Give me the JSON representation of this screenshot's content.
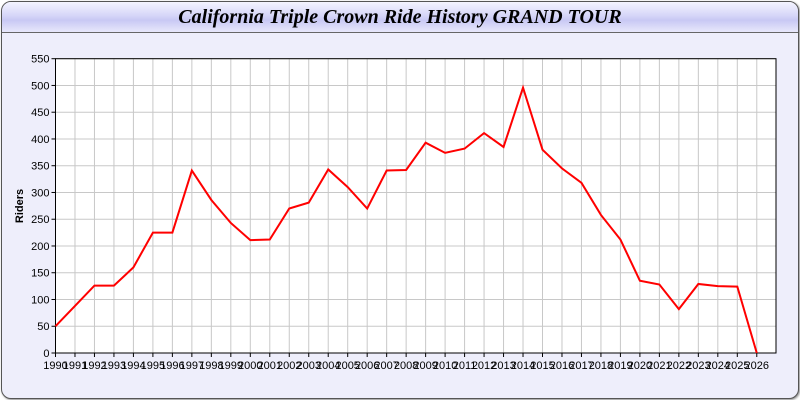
{
  "title": "California Triple Crown Ride History GRAND TOUR",
  "chart_data": {
    "type": "line",
    "title": "California Triple Crown Ride History GRAND TOUR",
    "xlabel": "",
    "ylabel": "Riders",
    "xlim": [
      1990,
      2027
    ],
    "ylim": [
      0,
      550
    ],
    "yticks": [
      0,
      50,
      100,
      150,
      200,
      250,
      300,
      350,
      400,
      450,
      500,
      550
    ],
    "grid": true,
    "line_color": "#ff0000",
    "x": [
      1990,
      1991,
      1992,
      1993,
      1994,
      1995,
      1996,
      1997,
      1998,
      1999,
      2000,
      2001,
      2002,
      2003,
      2004,
      2005,
      2006,
      2007,
      2008,
      2009,
      2010,
      2011,
      2012,
      2013,
      2014,
      2015,
      2016,
      2017,
      2018,
      2019,
      2020,
      2021,
      2022,
      2023,
      2024,
      2025,
      2026
    ],
    "values": [
      50,
      88,
      126,
      126,
      160,
      225,
      225,
      341,
      286,
      243,
      211,
      212,
      270,
      281,
      343,
      310,
      270,
      341,
      342,
      393,
      374,
      382,
      411,
      385,
      496,
      380,
      345,
      318,
      258,
      212,
      135,
      128,
      82,
      129,
      125,
      124,
      0
    ]
  }
}
